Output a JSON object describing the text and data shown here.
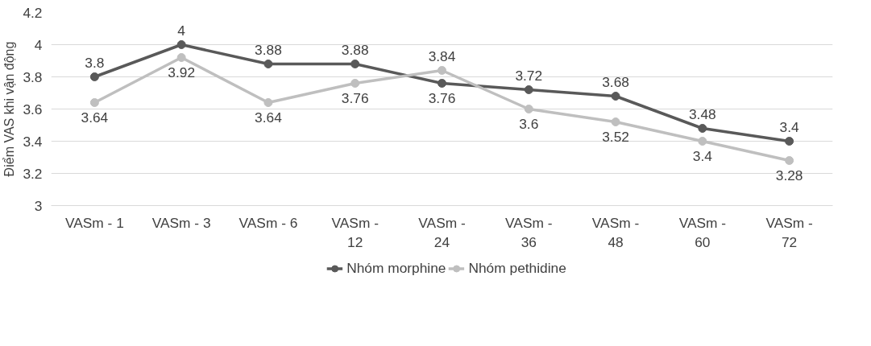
{
  "chart_data": {
    "type": "line",
    "ylabel": "Điểm VAS khi vận động",
    "categories": [
      "VASm - 1",
      "VASm - 3",
      "VASm - 6",
      "VASm - 12",
      "VASm - 24",
      "VASm - 36",
      "VASm - 48",
      "VASm - 60",
      "VASm - 72"
    ],
    "series": [
      {
        "name": "Nhóm morphine",
        "color": "#595959",
        "values": [
          3.8,
          4,
          3.88,
          3.88,
          3.76,
          3.72,
          3.68,
          3.48,
          3.4
        ]
      },
      {
        "name": "Nhóm pethidine",
        "color": "#bfbfbf",
        "values": [
          3.64,
          3.92,
          3.64,
          3.76,
          3.84,
          3.6,
          3.52,
          3.4,
          3.28
        ]
      }
    ],
    "ylim": [
      3,
      4.2
    ],
    "yticks": [
      3,
      3.2,
      3.4,
      3.6,
      3.8,
      4,
      4.2
    ],
    "grid": "y",
    "legend": "bottom",
    "marker": "circle",
    "line_style": "solid",
    "data_labels": true
  }
}
